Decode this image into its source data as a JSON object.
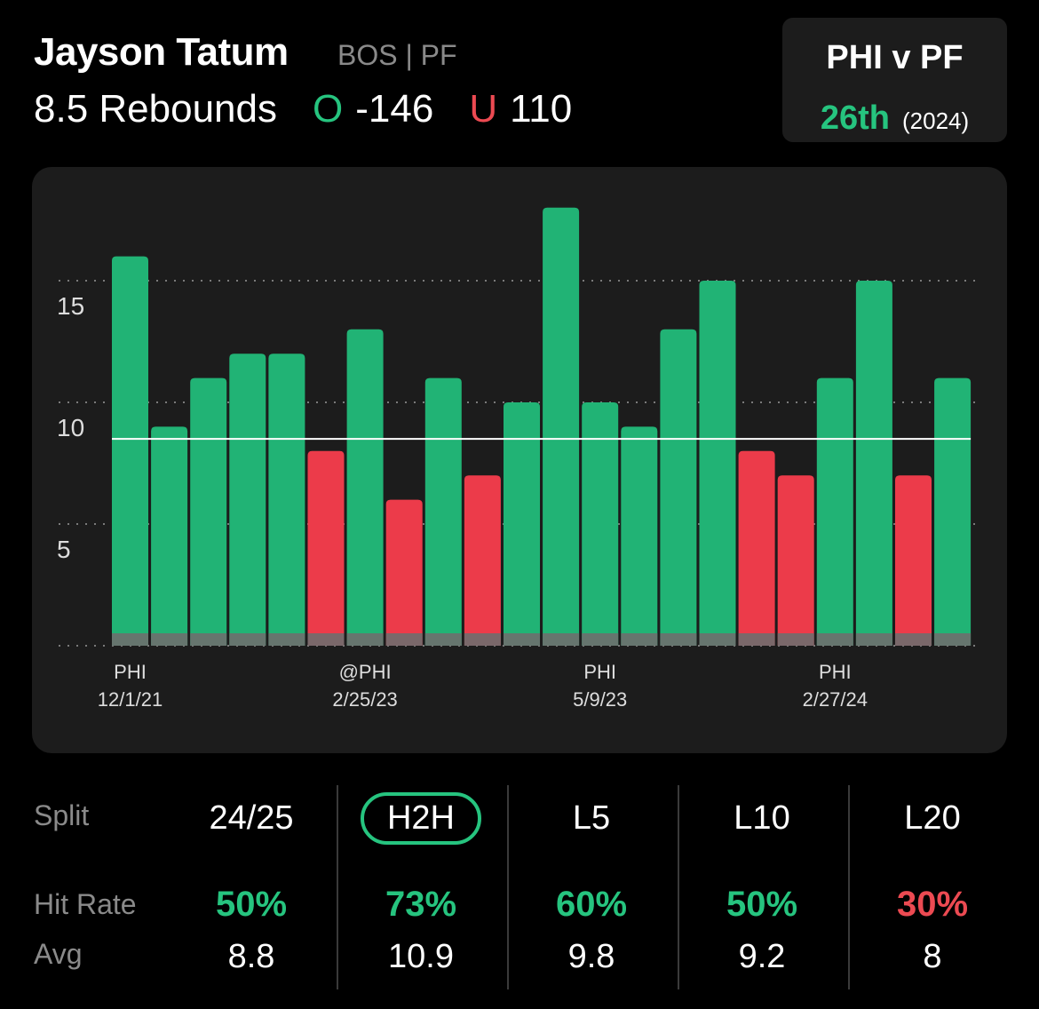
{
  "header": {
    "player_name": "Jayson Tatum",
    "team_pos": "BOS | PF",
    "line_label": "8.5 Rebounds",
    "over_tag": "O",
    "over_odds": "-146",
    "under_tag": "U",
    "under_odds": "110"
  },
  "matchup": {
    "title": "PHI v PF",
    "rank": "26th",
    "year": "(2024)"
  },
  "chart_data": {
    "type": "bar",
    "line": 8.5,
    "ylim": [
      0,
      19
    ],
    "yticks": [
      5,
      10,
      15
    ],
    "values": [
      16,
      9,
      11,
      12,
      12,
      8,
      13,
      6,
      11,
      7,
      10,
      18,
      10,
      9,
      13,
      15,
      8,
      7,
      11,
      15,
      7,
      11
    ],
    "x_labels": [
      {
        "index": 0,
        "opponent": "PHI",
        "date": "12/1/21"
      },
      {
        "index": 6,
        "opponent": "@PHI",
        "date": "2/25/23"
      },
      {
        "index": 12,
        "opponent": "PHI",
        "date": "5/9/23"
      },
      {
        "index": 18,
        "opponent": "PHI",
        "date": "2/27/24"
      }
    ],
    "colors": {
      "over": "#21b375",
      "under": "#ec3b4a",
      "baseline": "#6e6e6e",
      "grid": "#7a7a7a",
      "line": "#ffffff"
    }
  },
  "splits": {
    "split_label": "Split",
    "hit_rate_label": "Hit Rate",
    "avg_label": "Avg",
    "columns": [
      {
        "label": "24/25",
        "hit_rate": "50%",
        "avg": "8.8",
        "hit_status": "good",
        "selected": false
      },
      {
        "label": "H2H",
        "hit_rate": "73%",
        "avg": "10.9",
        "hit_status": "good",
        "selected": true
      },
      {
        "label": "L5",
        "hit_rate": "60%",
        "avg": "9.8",
        "hit_status": "good",
        "selected": false
      },
      {
        "label": "L10",
        "hit_rate": "50%",
        "avg": "9.2",
        "hit_status": "good",
        "selected": false
      },
      {
        "label": "L20",
        "hit_rate": "30%",
        "avg": "8",
        "hit_status": "bad",
        "selected": false
      }
    ]
  }
}
